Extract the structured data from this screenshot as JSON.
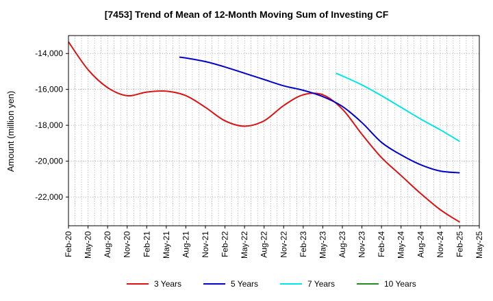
{
  "chart_data": {
    "type": "line",
    "title": "[7453]  Trend of Mean of 12-Month Moving Sum of Investing CF",
    "xlabel": "",
    "ylabel": "Amount (million yen)",
    "ylim": [
      -23600,
      -13000
    ],
    "yticks": [
      -14000,
      -16000,
      -18000,
      -20000,
      -22000
    ],
    "ytick_labels": [
      "-14,000",
      "-16,000",
      "-18,000",
      "-20,000",
      "-22,000"
    ],
    "categories": [
      "Feb-20",
      "May-20",
      "Aug-20",
      "Nov-20",
      "Feb-21",
      "May-21",
      "Aug-21",
      "Nov-21",
      "Feb-22",
      "May-22",
      "Aug-22",
      "Nov-22",
      "Feb-23",
      "May-23",
      "Aug-23",
      "Nov-23",
      "Feb-24",
      "May-24",
      "Aug-24",
      "Nov-24",
      "Feb-25",
      "May-25"
    ],
    "grid": true,
    "legend_position": "bottom",
    "series": [
      {
        "name": "3 Years",
        "color": "#dd1111",
        "x": [
          0,
          1,
          2,
          3,
          4,
          5,
          6,
          7,
          8,
          9,
          10,
          11,
          12,
          13,
          14,
          15,
          16,
          17,
          18,
          19,
          20
        ],
        "values": [
          -13350,
          -14900,
          -15900,
          -16350,
          -16150,
          -16100,
          -16350,
          -17000,
          -17750,
          -18050,
          -17750,
          -16900,
          -16300,
          -16300,
          -17100,
          -18500,
          -19800,
          -20800,
          -21800,
          -22700,
          -23400
        ]
      },
      {
        "name": "5 Years",
        "color": "#0000cc",
        "x": [
          5.67,
          6,
          7,
          8,
          9,
          10,
          11,
          12,
          13,
          14,
          15,
          16,
          17,
          18,
          19,
          20
        ],
        "values": [
          -14200,
          -14250,
          -14450,
          -14750,
          -15100,
          -15450,
          -15800,
          -16050,
          -16400,
          -16950,
          -17850,
          -18950,
          -19650,
          -20200,
          -20550,
          -20650
        ]
      },
      {
        "name": "7 Years",
        "color": "#00e5e5",
        "x": [
          13.67,
          14,
          15,
          16,
          17,
          18,
          19,
          20
        ],
        "values": [
          -15100,
          -15250,
          -15750,
          -16350,
          -17000,
          -17650,
          -18250,
          -18900
        ]
      },
      {
        "name": "10 Years",
        "color": "#228b22",
        "x": [],
        "values": []
      }
    ]
  }
}
